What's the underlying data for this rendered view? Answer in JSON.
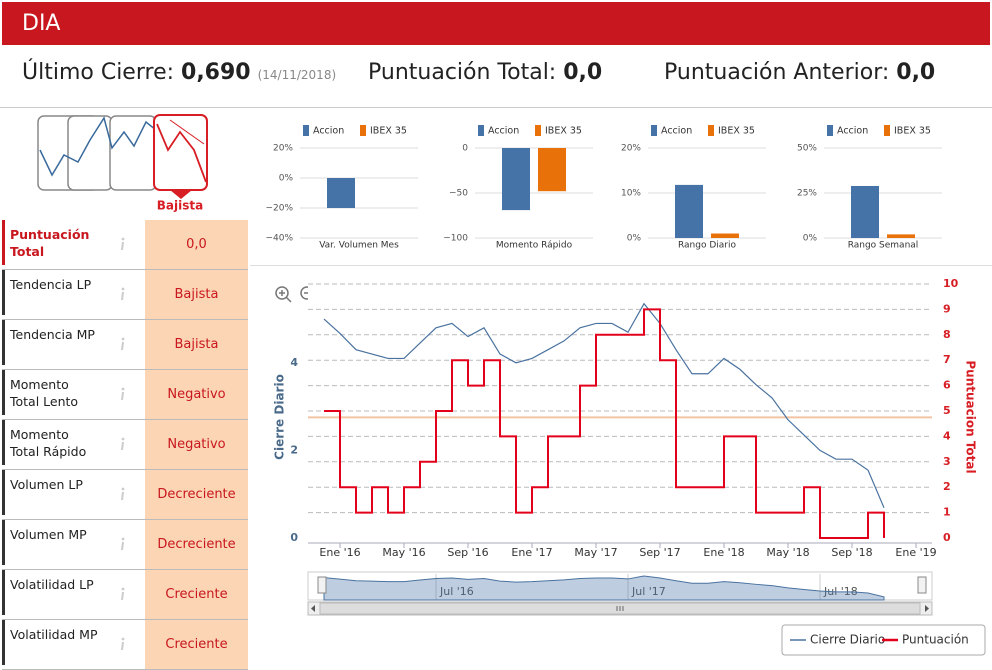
{
  "header": {
    "title": "DIA"
  },
  "summary": {
    "last_close": {
      "label": "Último Cierre:",
      "value": "0,690",
      "date": "(14/11/2018)"
    },
    "total_score": {
      "label": "Puntuación Total:",
      "value": "0,0"
    },
    "previous_score": {
      "label": "Puntuación Anterior:",
      "value": "0,0"
    }
  },
  "trend": {
    "label": "Bajista"
  },
  "table": {
    "rows": [
      [
        "Puntuación Total",
        "0,0"
      ],
      [
        "Tendencia LP",
        "Bajista"
      ],
      [
        "Tendencia MP",
        "Bajista"
      ],
      [
        "Momento Total Lento",
        "Negativo"
      ],
      [
        "Momento Total Rápido",
        "Negativo"
      ],
      [
        "Volumen LP",
        "Decreciente"
      ],
      [
        "Volumen MP",
        "Decreciente"
      ],
      [
        "Volatilidad LP",
        "Creciente"
      ],
      [
        "Volatilidad MP",
        "Creciente"
      ]
    ]
  },
  "chart_data": [
    {
      "type": "bar",
      "categories": [
        "Var. Volumen Mes"
      ],
      "series": [
        {
          "name": "Accion",
          "color": "#4572a7",
          "values": [
            -20
          ]
        },
        {
          "name": "IBEX 35",
          "color": "#e8710a",
          "values": [
            null
          ]
        }
      ],
      "ylim": [
        -40,
        20
      ],
      "yticks": [
        {
          "value": 20,
          "label": "20%"
        },
        {
          "value": 0,
          "label": "0%"
        },
        {
          "value": -20,
          "label": "−20%"
        },
        {
          "value": -40,
          "label": "−40%"
        }
      ],
      "grid": true
    },
    {
      "type": "bar",
      "categories": [
        "Momento Rápido"
      ],
      "series": [
        {
          "name": "Accion",
          "color": "#4572a7",
          "values": [
            -69
          ]
        },
        {
          "name": "IBEX 35",
          "color": "#e8710a",
          "values": [
            -48
          ]
        }
      ],
      "ylim": [
        -100,
        0
      ],
      "yticks": [
        0,
        {
          "value": -50,
          "label": "−50"
        },
        {
          "value": -100,
          "label": "−100"
        }
      ],
      "grid": true
    },
    {
      "type": "bar",
      "categories": [
        "Rango Diario"
      ],
      "series": [
        {
          "name": "Accion",
          "color": "#4572a7",
          "values": [
            11.8
          ]
        },
        {
          "name": "IBEX 35",
          "color": "#e8710a",
          "values": [
            1
          ]
        }
      ],
      "ylim": [
        0,
        20
      ],
      "yticks": [
        {
          "value": 20,
          "label": "20%"
        },
        {
          "value": 10,
          "label": "10%"
        },
        {
          "value": 0,
          "label": "0%"
        }
      ],
      "grid": true
    },
    {
      "type": "bar",
      "categories": [
        "Rango Semanal"
      ],
      "series": [
        {
          "name": "Accion",
          "color": "#4572a7",
          "values": [
            28.9
          ]
        },
        {
          "name": "IBEX 35",
          "color": "#e8710a",
          "values": [
            2
          ]
        }
      ],
      "ylim": [
        0,
        50
      ],
      "yticks": [
        {
          "value": 50,
          "label": "50%"
        },
        {
          "value": 25,
          "label": "25%"
        },
        {
          "value": 0,
          "label": "0%"
        }
      ],
      "grid": true
    },
    {
      "type": "line",
      "ylabel": "Cierre Diario",
      "y2label": "Puntuacion Total",
      "x": [
        "2015-12",
        "2016-01",
        "2016-02",
        "2016-03",
        "2016-04",
        "2016-05",
        "2016-06",
        "2016-07",
        "2016-08",
        "2016-09",
        "2016-10",
        "2016-11",
        "2016-12",
        "2017-01",
        "2017-02",
        "2017-03",
        "2017-04",
        "2017-05",
        "2017-06",
        "2017-07",
        "2017-08",
        "2017-09",
        "2017-10",
        "2017-11",
        "2017-12",
        "2018-01",
        "2018-02",
        "2018-03",
        "2018-04",
        "2018-05",
        "2018-06",
        "2018-07",
        "2018-08",
        "2018-09",
        "2018-10",
        "2018-11"
      ],
      "series": [
        {
          "name": "Cierre Diario",
          "color": "#4a72a0",
          "axis": "y",
          "values": [
            5.0,
            4.67,
            4.3,
            4.2,
            4.1,
            4.1,
            4.45,
            4.8,
            4.9,
            4.6,
            4.8,
            4.2,
            4.0,
            4.1,
            4.3,
            4.5,
            4.8,
            4.9,
            4.9,
            4.7,
            5.35,
            4.9,
            4.3,
            3.75,
            3.75,
            4.1,
            3.85,
            3.5,
            3.2,
            2.7,
            2.35,
            2.0,
            1.8,
            1.8,
            1.55,
            0.69
          ]
        },
        {
          "name": "Puntuación",
          "color": "#e3001b",
          "axis": "y2",
          "step": true,
          "values": [
            5,
            2,
            1,
            2,
            1,
            2,
            3,
            5,
            7,
            6,
            7,
            4,
            1,
            2,
            4,
            4,
            6,
            8,
            8,
            8,
            9,
            7,
            2,
            2,
            2,
            4,
            4,
            1,
            1,
            1,
            2,
            0,
            0,
            0,
            1,
            0
          ]
        }
      ],
      "xlim": [
        "2015-11",
        "2019-02"
      ],
      "xticks": [
        {
          "value": "2016-01",
          "label": "Ene '16"
        },
        {
          "value": "2016-05",
          "label": "May '16"
        },
        {
          "value": "2016-09",
          "label": "Sep '16"
        },
        {
          "value": "2017-01",
          "label": "Ene '17"
        },
        {
          "value": "2017-05",
          "label": "May '17"
        },
        {
          "value": "2017-09",
          "label": "Sep '17"
        },
        {
          "value": "2018-01",
          "label": "Ene '18"
        },
        {
          "value": "2018-05",
          "label": "May '18"
        },
        {
          "value": "2018-09",
          "label": "Sep '18"
        },
        {
          "value": "2019-01",
          "label": "Ene '19"
        }
      ],
      "ylim": [
        0,
        5.8
      ],
      "yticks": [
        0,
        2,
        4
      ],
      "y2lim": [
        0,
        10
      ],
      "y2ticks": [
        0,
        1,
        2,
        3,
        4,
        5,
        6,
        7,
        8,
        9,
        10
      ],
      "grid": "y2",
      "plot_line": {
        "value": 4.75,
        "axis": "y2",
        "color": "#f2c4a4"
      },
      "legend": "bottom-right",
      "navigator": {
        "xticks": [
          {
            "value": "2016-07",
            "label": "Jul '16"
          },
          {
            "value": "2017-07",
            "label": "Jul '17"
          },
          {
            "value": "2018-07",
            "label": "Jul '18"
          }
        ]
      }
    }
  ]
}
